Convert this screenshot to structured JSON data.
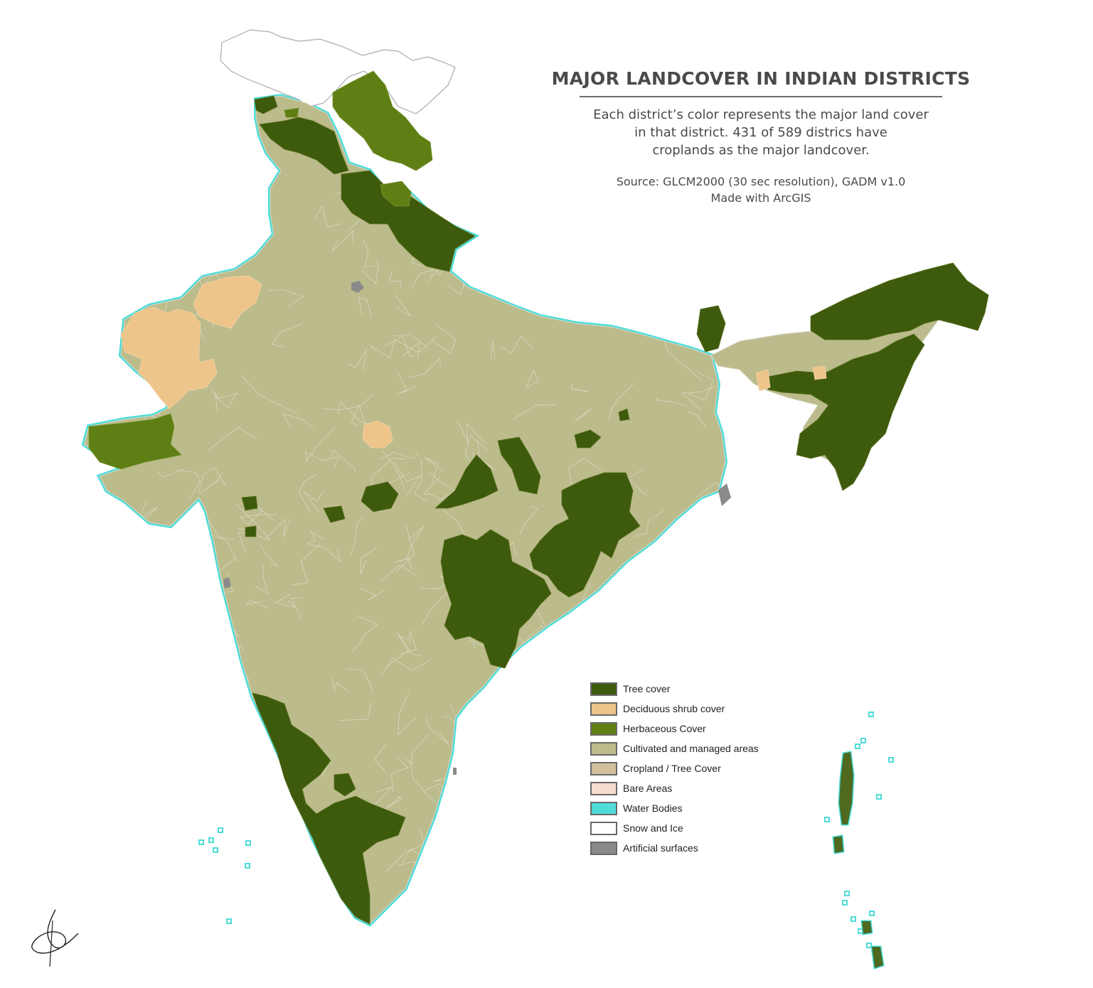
{
  "title": "MAJOR LANDCOVER IN INDIAN DISTRICTS",
  "subtitle_lines": [
    "Each district’s color represents the major land cover",
    "in that district. 431 of 589 districs have",
    "croplands as the major landcover."
  ],
  "source_lines": [
    "Source: GLCM2000 (30 sec resolution), GADM v1.0",
    "Made with ArcGIS"
  ],
  "legend": [
    {
      "label": "Tree cover",
      "color": "#3e5a0c"
    },
    {
      "label": "Deciduous shrub cover",
      "color": "#edc48a"
    },
    {
      "label": "Herbaceous Cover",
      "color": "#5f7f14"
    },
    {
      "label": "Cultivated and managed areas",
      "color": "#bcbb8c"
    },
    {
      "label": "Cropland / Tree Cover",
      "color": "#d3bf9d"
    },
    {
      "label": "Bare Areas",
      "color": "#f6dccd"
    },
    {
      "label": "Water Bodies",
      "color": "#4fdcd8"
    },
    {
      "label": "Snow and Ice",
      "color": "#ffffff"
    },
    {
      "label": "Artificial surfaces",
      "color": "#8a8a8a"
    }
  ],
  "map_colors": {
    "tree": "#3e5a0c",
    "shrub": "#edc48a",
    "herb": "#5f7f14",
    "crop": "#bcbb8c",
    "water": "#4fdcd8",
    "snow": "#ffffff",
    "artificial": "#8a8a8a",
    "border": "#d8d8c4",
    "outline": "#aaaaaa"
  }
}
